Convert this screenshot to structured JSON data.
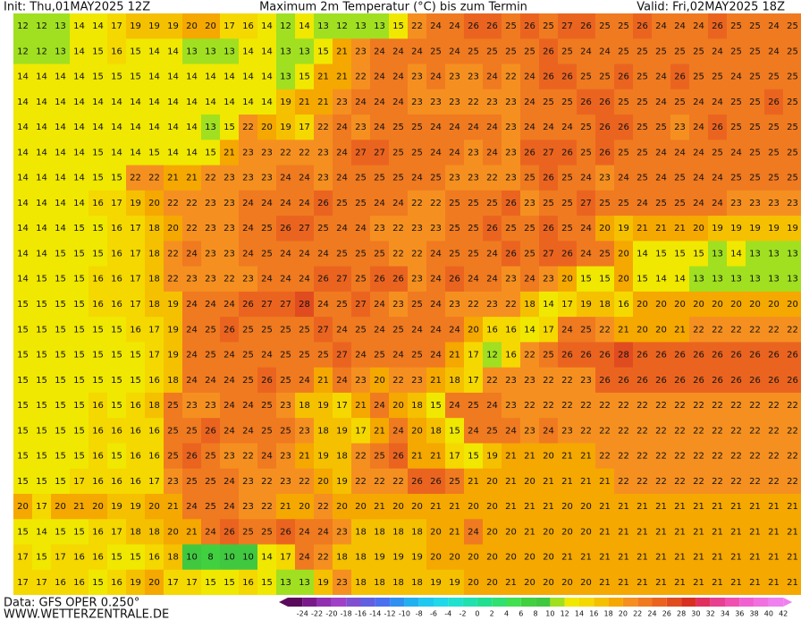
{
  "header": {
    "init": "Init: Thu,01MAY2025 12Z",
    "title": "Maximum 2m Temperatur (°C) bis zum Termin",
    "valid": "Valid: Fri,02MAY2025 18Z"
  },
  "footer": {
    "data": "Data: GFS OPER 0.250°",
    "site": "WWW.WETTERZENTRALE.DE"
  },
  "colorbar": {
    "ticks": [
      -24,
      -22,
      -20,
      -18,
      -16,
      -14,
      -12,
      -10,
      -8,
      -6,
      -4,
      -2,
      0,
      2,
      4,
      6,
      8,
      10,
      12,
      14,
      16,
      18,
      20,
      22,
      24,
      26,
      28,
      30,
      32,
      34,
      36,
      38,
      40,
      42
    ],
    "colors": [
      "#5a0a5a",
      "#7a1a8a",
      "#9030b0",
      "#a040c8",
      "#8050d0",
      "#6060e0",
      "#4a70f0",
      "#3090f0",
      "#20b0f0",
      "#20c8f0",
      "#20d8e8",
      "#20e0d0",
      "#20e0b0",
      "#20e090",
      "#30e070",
      "#40e050",
      "#40d040",
      "#40c840",
      "#a0e020",
      "#f0e800",
      "#f5d800",
      "#f5c000",
      "#f5a800",
      "#f59020",
      "#f07a20",
      "#ea6420",
      "#e04c20",
      "#d83020",
      "#e03060",
      "#e84090",
      "#f050b0",
      "#f060d0",
      "#f070e0",
      "#f080f0"
    ]
  },
  "grid": [
    [
      12,
      12,
      13,
      14,
      14,
      17,
      19,
      19,
      19,
      20,
      20,
      17,
      16,
      14,
      12,
      14,
      13,
      12,
      13,
      13,
      15,
      22,
      24,
      24,
      26,
      26,
      25,
      26,
      25,
      27,
      26,
      25,
      25,
      26,
      24,
      24,
      24,
      26,
      25,
      25,
      24,
      25
    ],
    [
      12,
      12,
      13,
      14,
      15,
      16,
      15,
      14,
      14,
      13,
      13,
      13,
      14,
      14,
      13,
      13,
      15,
      21,
      23,
      24,
      24,
      24,
      25,
      24,
      25,
      25,
      25,
      25,
      26,
      25,
      24,
      24,
      25,
      25,
      25,
      25,
      25,
      24,
      25,
      25,
      24,
      25
    ],
    [
      14,
      14,
      14,
      14,
      15,
      15,
      15,
      14,
      14,
      14,
      14,
      14,
      14,
      14,
      13,
      15,
      21,
      21,
      22,
      24,
      24,
      23,
      24,
      23,
      23,
      24,
      22,
      24,
      26,
      26,
      25,
      25,
      26,
      25,
      24,
      26,
      25,
      25,
      24,
      25,
      25,
      25
    ],
    [
      14,
      14,
      14,
      14,
      14,
      14,
      14,
      14,
      14,
      14,
      14,
      14,
      14,
      14,
      19,
      21,
      21,
      23,
      24,
      24,
      24,
      23,
      23,
      23,
      22,
      23,
      23,
      24,
      25,
      25,
      26,
      26,
      25,
      25,
      24,
      25,
      24,
      24,
      25,
      25,
      26,
      25
    ],
    [
      14,
      14,
      14,
      14,
      14,
      14,
      14,
      14,
      14,
      14,
      13,
      15,
      22,
      20,
      19,
      17,
      22,
      24,
      23,
      24,
      25,
      25,
      24,
      24,
      24,
      24,
      23,
      24,
      24,
      24,
      25,
      26,
      26,
      25,
      25,
      23,
      24,
      26,
      25,
      25,
      25,
      25
    ],
    [
      14,
      14,
      14,
      14,
      15,
      14,
      14,
      15,
      14,
      14,
      15,
      21,
      23,
      23,
      22,
      22,
      23,
      24,
      27,
      27,
      25,
      25,
      24,
      24,
      23,
      24,
      23,
      26,
      27,
      26,
      25,
      26,
      25,
      25,
      24,
      24,
      24,
      25,
      24,
      25,
      25,
      25
    ],
    [
      14,
      14,
      14,
      14,
      15,
      15,
      22,
      22,
      21,
      21,
      22,
      23,
      23,
      23,
      24,
      24,
      23,
      24,
      25,
      25,
      25,
      24,
      25,
      23,
      23,
      22,
      23,
      25,
      26,
      25,
      24,
      23,
      24,
      25,
      24,
      25,
      24,
      24,
      25,
      25,
      25,
      25
    ],
    [
      14,
      14,
      14,
      14,
      16,
      17,
      19,
      20,
      22,
      22,
      23,
      23,
      24,
      24,
      24,
      24,
      26,
      25,
      25,
      24,
      24,
      22,
      22,
      25,
      25,
      25,
      26,
      23,
      25,
      25,
      27,
      25,
      25,
      24,
      25,
      25,
      24,
      24,
      23,
      23,
      23,
      23
    ],
    [
      14,
      14,
      14,
      15,
      15,
      16,
      17,
      18,
      20,
      22,
      23,
      23,
      24,
      25,
      26,
      27,
      25,
      24,
      24,
      23,
      22,
      23,
      23,
      25,
      25,
      26,
      25,
      25,
      26,
      25,
      24,
      20,
      19,
      21,
      21,
      21,
      20,
      19,
      19,
      19,
      19,
      19
    ],
    [
      14,
      14,
      15,
      15,
      15,
      16,
      17,
      18,
      22,
      24,
      23,
      23,
      24,
      25,
      24,
      24,
      24,
      25,
      25,
      25,
      22,
      22,
      24,
      25,
      25,
      24,
      26,
      25,
      27,
      26,
      24,
      25,
      20,
      14,
      15,
      15,
      15,
      13,
      14,
      13,
      13,
      13
    ],
    [
      14,
      15,
      15,
      15,
      16,
      16,
      17,
      18,
      22,
      23,
      23,
      22,
      23,
      24,
      24,
      24,
      26,
      27,
      25,
      26,
      26,
      23,
      24,
      26,
      24,
      24,
      23,
      24,
      23,
      20,
      15,
      15,
      20,
      15,
      14,
      14,
      13,
      13,
      13,
      13,
      13,
      13
    ],
    [
      15,
      15,
      15,
      15,
      16,
      16,
      17,
      18,
      19,
      24,
      24,
      24,
      26,
      27,
      27,
      28,
      24,
      25,
      27,
      24,
      23,
      25,
      24,
      23,
      22,
      23,
      22,
      18,
      14,
      17,
      19,
      18,
      16,
      20,
      20,
      20,
      20,
      20,
      20,
      20,
      20,
      20
    ],
    [
      15,
      15,
      15,
      15,
      15,
      15,
      16,
      17,
      19,
      24,
      25,
      26,
      25,
      25,
      25,
      25,
      27,
      24,
      25,
      24,
      25,
      24,
      24,
      24,
      20,
      16,
      16,
      14,
      17,
      24,
      25,
      22,
      21,
      20,
      20,
      21,
      22,
      22,
      22,
      22,
      22,
      22
    ],
    [
      15,
      15,
      15,
      15,
      15,
      15,
      15,
      17,
      19,
      24,
      25,
      24,
      25,
      24,
      25,
      25,
      25,
      27,
      24,
      25,
      24,
      25,
      24,
      21,
      17,
      12,
      16,
      22,
      25,
      26,
      26,
      26,
      28,
      26,
      26,
      26,
      26,
      26,
      26,
      26,
      26,
      26
    ],
    [
      15,
      15,
      15,
      15,
      15,
      15,
      15,
      16,
      18,
      24,
      24,
      24,
      25,
      26,
      25,
      24,
      21,
      24,
      23,
      20,
      22,
      23,
      21,
      18,
      17,
      22,
      23,
      23,
      22,
      22,
      23,
      26,
      26,
      26,
      26,
      26,
      26,
      26,
      26,
      26,
      26,
      26
    ],
    [
      15,
      15,
      15,
      15,
      16,
      15,
      16,
      18,
      25,
      23,
      23,
      24,
      24,
      25,
      23,
      18,
      19,
      17,
      21,
      24,
      20,
      18,
      15,
      24,
      25,
      24,
      23,
      22,
      22,
      22,
      22,
      22,
      22,
      22,
      22,
      22,
      22,
      22,
      22,
      22,
      22,
      22
    ],
    [
      15,
      15,
      15,
      15,
      16,
      16,
      16,
      16,
      25,
      25,
      26,
      24,
      24,
      25,
      25,
      23,
      18,
      19,
      17,
      21,
      24,
      20,
      18,
      15,
      24,
      25,
      24,
      23,
      24,
      23,
      22,
      22,
      22,
      22,
      22,
      22,
      22,
      22,
      22,
      22,
      22,
      22
    ],
    [
      15,
      15,
      15,
      15,
      16,
      15,
      16,
      16,
      25,
      26,
      25,
      23,
      22,
      24,
      23,
      21,
      19,
      18,
      22,
      25,
      26,
      21,
      21,
      17,
      15,
      19,
      21,
      21,
      20,
      21,
      21,
      22,
      22,
      22,
      22,
      22,
      22,
      22,
      22,
      22,
      22,
      22
    ],
    [
      15,
      15,
      15,
      17,
      16,
      16,
      16,
      17,
      23,
      25,
      25,
      24,
      23,
      22,
      23,
      22,
      20,
      19,
      22,
      22,
      22,
      26,
      26,
      25,
      21,
      20,
      21,
      20,
      21,
      21,
      21,
      21,
      22,
      22,
      22,
      22,
      22,
      22,
      22,
      22,
      22,
      22
    ],
    [
      20,
      17,
      20,
      21,
      20,
      19,
      19,
      20,
      21,
      24,
      25,
      24,
      23,
      22,
      21,
      20,
      22,
      20,
      20,
      21,
      20,
      20,
      21,
      21,
      20,
      20,
      21,
      21,
      21,
      20,
      20,
      21,
      21,
      21,
      21,
      21,
      21,
      21,
      21,
      21,
      21,
      21
    ],
    [
      15,
      14,
      15,
      15,
      16,
      17,
      18,
      18,
      20,
      21,
      24,
      26,
      25,
      25,
      26,
      24,
      24,
      23,
      18,
      18,
      18,
      18,
      20,
      21,
      24,
      20,
      20,
      21,
      20,
      20,
      20,
      21,
      21,
      21,
      21,
      21,
      21,
      21,
      21,
      21,
      21,
      21
    ],
    [
      17,
      15,
      17,
      16,
      16,
      15,
      15,
      16,
      18,
      10,
      8,
      10,
      10,
      14,
      17,
      24,
      22,
      18,
      18,
      19,
      19,
      19,
      20,
      20,
      20,
      20,
      20,
      20,
      20,
      21,
      21,
      21,
      21,
      21,
      21,
      21,
      21,
      21,
      21,
      21,
      21,
      21
    ],
    [
      17,
      17,
      16,
      16,
      15,
      16,
      19,
      20,
      17,
      17,
      15,
      15,
      16,
      15,
      13,
      13,
      19,
      23,
      18,
      18,
      18,
      18,
      19,
      19,
      20,
      20,
      21,
      20,
      20,
      20,
      20,
      21,
      21,
      21,
      21,
      21,
      21,
      21,
      21,
      21,
      21,
      21
    ]
  ]
}
